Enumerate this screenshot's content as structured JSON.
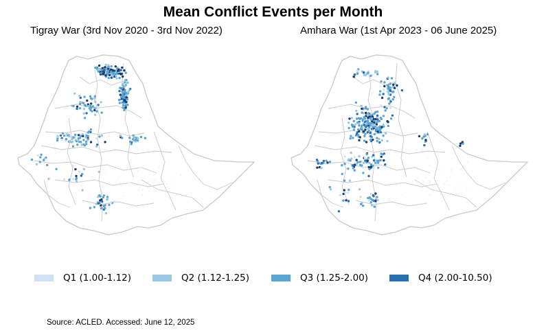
{
  "title": "Mean Conflict Events per Month",
  "maps": [
    {
      "id": "left",
      "subtitle": "Tigray War (3rd Nov 2020 - 3rd Nov 2022)"
    },
    {
      "id": "right",
      "subtitle": "Amhara War (1st Apr 2023 - 06 June 2025)"
    }
  ],
  "legend": [
    {
      "label": "Q1 (1.00-1.12)",
      "color": "#d0e1f2"
    },
    {
      "label": "Q2 (1.12-1.25)",
      "color": "#9ac8e0"
    },
    {
      "label": "Q3 (1.25-2.00)",
      "color": "#5ba3d0"
    },
    {
      "label": "Q4 (2.00-10.50)",
      "color": "#2a6fb0"
    }
  ],
  "colors": {
    "boundary": "#c8c8c8",
    "point_dark": "#1a3a6e",
    "point_faint": "#eef5fb"
  },
  "source": "Source: ACLED. Accessed: June 12, 2025"
}
